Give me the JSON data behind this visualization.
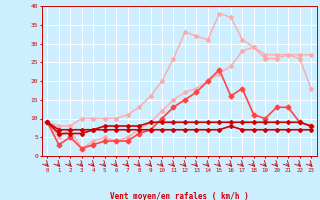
{
  "xlabel": "Vent moyen/en rafales ( km/h )",
  "background_color": "#cceeff",
  "grid_color": "#ffffff",
  "x": [
    0,
    1,
    2,
    3,
    4,
    5,
    6,
    7,
    8,
    9,
    10,
    11,
    12,
    13,
    14,
    15,
    16,
    17,
    18,
    19,
    20,
    21,
    22,
    23
  ],
  "series": [
    {
      "color": "#ffaaaa",
      "linewidth": 1.0,
      "marker": "D",
      "markersize": 2.0,
      "y": [
        9,
        8,
        8,
        10,
        10,
        10,
        10,
        11,
        13,
        16,
        20,
        26,
        33,
        32,
        31,
        38,
        37,
        31,
        29,
        27,
        27,
        27,
        27,
        27
      ]
    },
    {
      "color": "#ffaaaa",
      "linewidth": 1.0,
      "marker": "D",
      "markersize": 2.0,
      "y": [
        9,
        5,
        7,
        2,
        4,
        5,
        4,
        5,
        7,
        9,
        12,
        15,
        17,
        18,
        20,
        22,
        24,
        28,
        29,
        26,
        26,
        27,
        26,
        18
      ]
    },
    {
      "color": "#ff4444",
      "linewidth": 1.2,
      "marker": "D",
      "markersize": 2.5,
      "y": [
        9,
        3,
        5,
        2,
        3,
        4,
        4,
        4,
        6,
        7,
        10,
        13,
        15,
        17,
        20,
        23,
        16,
        18,
        11,
        10,
        13,
        13,
        9,
        8
      ]
    },
    {
      "color": "#cc0000",
      "linewidth": 1.2,
      "marker": "D",
      "markersize": 2.0,
      "y": [
        9,
        7,
        7,
        7,
        7,
        8,
        8,
        8,
        8,
        9,
        9,
        9,
        9,
        9,
        9,
        9,
        9,
        9,
        9,
        9,
        9,
        9,
        9,
        8
      ]
    },
    {
      "color": "#cc0000",
      "linewidth": 1.2,
      "marker": "D",
      "markersize": 2.0,
      "y": [
        9,
        6,
        6,
        6,
        7,
        7,
        7,
        7,
        7,
        7,
        7,
        7,
        7,
        7,
        7,
        7,
        8,
        7,
        7,
        7,
        7,
        7,
        7,
        7
      ]
    }
  ],
  "ylim": [
    0,
    40
  ],
  "xlim": [
    -0.5,
    23.5
  ],
  "yticks": [
    0,
    5,
    10,
    15,
    20,
    25,
    30,
    35,
    40
  ],
  "xticks": [
    0,
    1,
    2,
    3,
    4,
    5,
    6,
    7,
    8,
    9,
    10,
    11,
    12,
    13,
    14,
    15,
    16,
    17,
    18,
    19,
    20,
    21,
    22,
    23
  ]
}
